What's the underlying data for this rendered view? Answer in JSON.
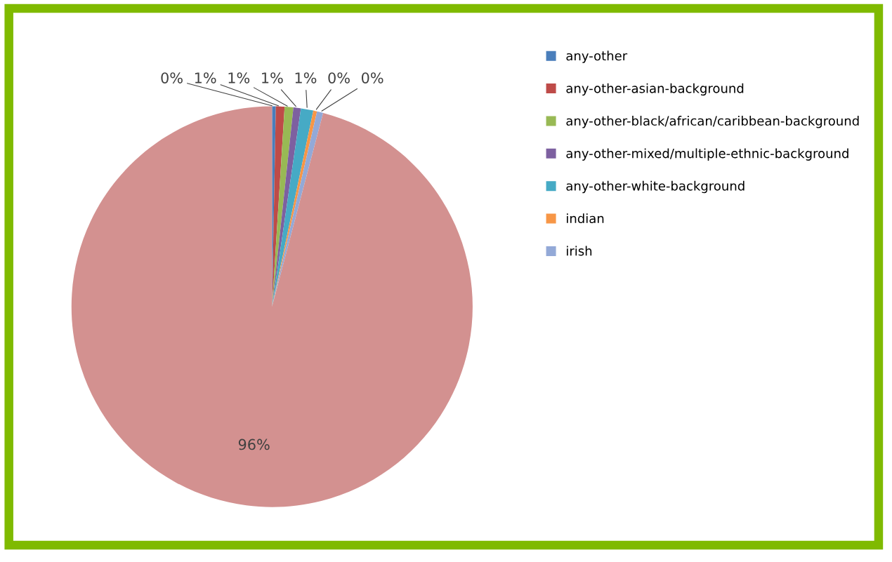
{
  "chart_data": {
    "type": "pie",
    "categories": [
      "any-other",
      "any-other-asian-background",
      "any-other-black/african/caribbean-background",
      "any-other-mixed/multiple-ethnic-background",
      "any-other-white-background",
      "indian",
      "irish",
      null
    ],
    "values": [
      0.3,
      0.7,
      0.7,
      0.6,
      1.0,
      0.3,
      0.5,
      95.9
    ],
    "value_labels": [
      "0%",
      "1%",
      "1%",
      "1%",
      "1%",
      "0%",
      "0%",
      "96%"
    ],
    "colors": [
      "#4a7ebb",
      "#be4b48",
      "#98b954",
      "#7d60a0",
      "#46aac5",
      "#f79646",
      "#93a9d7",
      "#d39190"
    ],
    "legend": "right"
  }
}
